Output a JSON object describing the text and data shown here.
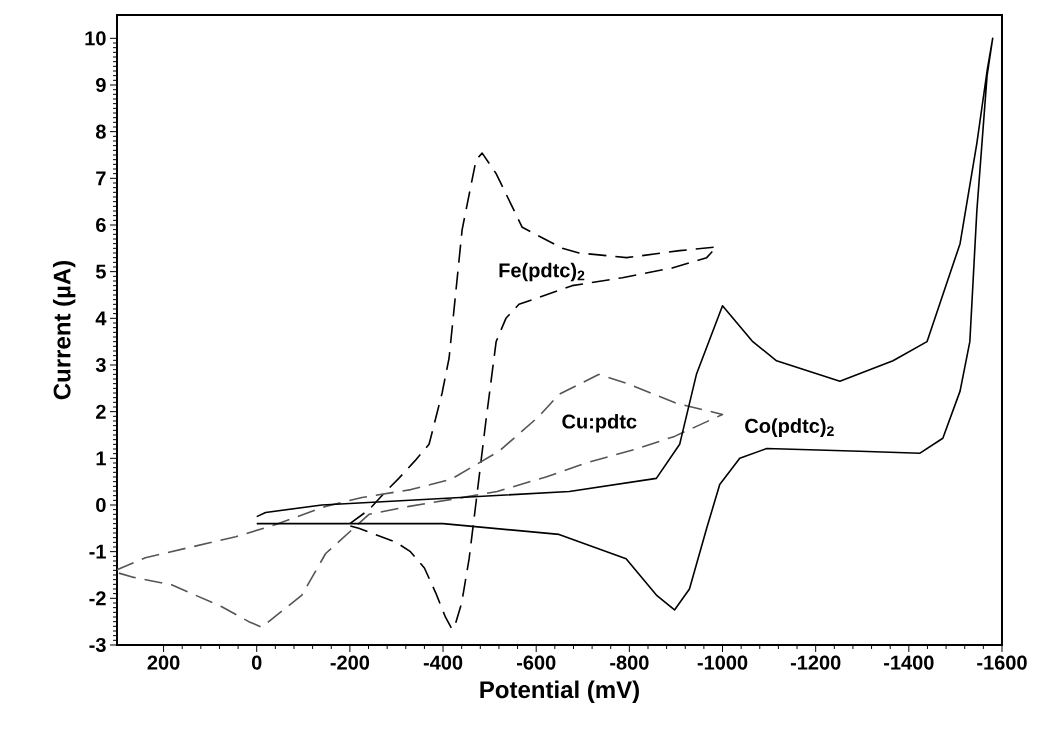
{
  "chart_data": {
    "type": "line",
    "xlabel": "Potential (mV)",
    "ylabel": "Current (µA)",
    "xlim": [
      300,
      -1600
    ],
    "ylim": [
      -3,
      10.5
    ],
    "xticks": [
      200,
      0,
      -200,
      -400,
      -600,
      -800,
      -1000,
      -1200,
      -1400,
      -1600
    ],
    "yticks": [
      -3,
      -2,
      -1,
      0,
      1,
      2,
      3,
      4,
      5,
      6,
      7,
      8,
      9,
      10
    ],
    "marker": "none",
    "series": [
      {
        "color": "#000000",
        "line_style": "dashed",
        "x": [
          -200,
          -241,
          -277,
          -305,
          -340,
          -370,
          -398,
          -413,
          -441,
          -471,
          -484,
          -514,
          -570,
          -656,
          -692,
          -794,
          -908,
          -987,
          -966,
          -892,
          -785,
          -677,
          -563,
          -535,
          -514,
          -492,
          -471,
          -456,
          -440,
          -425,
          -419,
          -405,
          -385,
          -360,
          -330,
          -299,
          -219,
          -200
        ],
        "values": [
          -0.4,
          -0.1,
          0.29,
          0.57,
          0.95,
          1.3,
          2.4,
          3.15,
          5.9,
          7.4,
          7.54,
          7.1,
          5.95,
          5.5,
          5.4,
          5.3,
          5.45,
          5.53,
          5.3,
          5.08,
          4.87,
          4.7,
          4.3,
          4.0,
          3.5,
          1.8,
          0.07,
          -1.15,
          -2.1,
          -2.6,
          -2.66,
          -2.4,
          -1.9,
          -1.35,
          -1.0,
          -0.8,
          -0.5,
          -0.45
        ]
      },
      {
        "color": "#555555",
        "line_style": "dashed",
        "x": [
          300,
          239,
          153,
          45,
          -41,
          -148,
          -226,
          -331,
          -417,
          -520,
          -606,
          -649,
          -735,
          -796,
          -901,
          -1000,
          -897,
          -815,
          -707,
          -621,
          -516,
          -430,
          -327,
          -241,
          -148,
          -97,
          -11,
          17,
          75,
          183,
          269,
          296
        ],
        "values": [
          -1.39,
          -1.13,
          -0.93,
          -0.68,
          -0.42,
          -0.03,
          0.16,
          0.33,
          0.55,
          1.15,
          1.9,
          2.37,
          2.8,
          2.6,
          2.18,
          1.94,
          1.47,
          1.2,
          0.9,
          0.6,
          0.29,
          0.14,
          -0.03,
          -0.2,
          -1.04,
          -1.93,
          -2.62,
          -2.5,
          -2.18,
          -1.71,
          -1.54,
          -1.46
        ]
      },
      {
        "color": "#000000",
        "line_style": "solid",
        "x": [
          0,
          -19,
          -140,
          -398,
          -671,
          -858,
          -908,
          -944,
          -1000,
          -1065,
          -1116,
          -1252,
          -1366,
          -1439,
          -1510,
          -1546,
          -1568,
          -1580,
          -1568,
          -1546,
          -1531,
          -1510,
          -1473,
          -1424,
          -1295,
          -1095,
          -1037,
          -994,
          -966,
          -929,
          -897,
          -858,
          -793,
          -649,
          -400,
          0
        ],
        "values": [
          -0.25,
          -0.16,
          0.0,
          0.14,
          0.29,
          0.57,
          1.3,
          2.8,
          4.27,
          3.5,
          3.09,
          2.65,
          3.09,
          3.5,
          5.6,
          7.75,
          9.3,
          10.0,
          9.2,
          6.3,
          3.5,
          2.44,
          1.43,
          1.11,
          1.15,
          1.21,
          1.0,
          0.44,
          -0.5,
          -1.8,
          -2.25,
          -1.93,
          -1.15,
          -0.63,
          -0.4,
          -0.4
        ]
      }
    ],
    "annotations": [
      "Fe(pdtc)$_{2}$",
      "Cu:pdtc",
      "Co(pdtc)$_{2}$"
    ]
  }
}
